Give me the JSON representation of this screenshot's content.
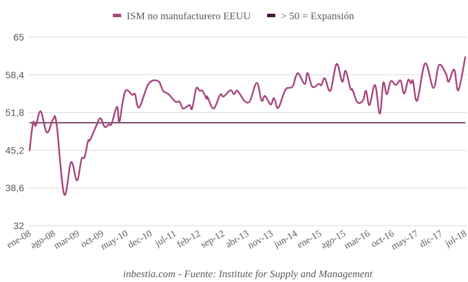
{
  "chart_data": {
    "type": "line",
    "title": "",
    "xlabel": "",
    "ylabel": "",
    "ylim": [
      32,
      65
    ],
    "yticks": [
      "65",
      "58,4",
      "51,8",
      "45,2",
      "38,6",
      "32"
    ],
    "ytick_values": [
      65,
      58.4,
      51.8,
      45.2,
      38.6,
      32
    ],
    "grid": true,
    "legend_position": "top-center",
    "x_range_months": [
      0,
      126
    ],
    "x_tick_labels": [
      "ene-08",
      "ago-08",
      "mar-09",
      "oct-09",
      "may-10",
      "dec-10",
      "jul-11",
      "feb-12",
      "sep-12",
      "abr-13",
      "nov-13",
      "jun-14",
      "ene-15",
      "ago-15",
      "mar-16",
      "oct-16",
      "may-17",
      "dic-17",
      "jul-18"
    ],
    "x_tick_step_months": 7,
    "series": [
      {
        "name": "ISM no manufacturero EEUU",
        "color": "#A7457E",
        "smooth": true,
        "points_month_value": [
          [
            0,
            45.2
          ],
          [
            1,
            50.0
          ],
          [
            1.8,
            49.5
          ],
          [
            3.2,
            52.0
          ],
          [
            5,
            48.3
          ],
          [
            6.8,
            50.6
          ],
          [
            7.8,
            49.8
          ],
          [
            10,
            37.5
          ],
          [
            12,
            43.1
          ],
          [
            13.7,
            39.9
          ],
          [
            15,
            43.6
          ],
          [
            15.9,
            44.0
          ],
          [
            16.9,
            46.8
          ],
          [
            17.5,
            47.0
          ],
          [
            19.3,
            49.5
          ],
          [
            20.5,
            50.8
          ],
          [
            21.7,
            49.3
          ],
          [
            22.9,
            49.7
          ],
          [
            23.7,
            49.8
          ],
          [
            25.3,
            52.8
          ],
          [
            25.9,
            50.0
          ],
          [
            26.9,
            53.5
          ],
          [
            27.9,
            55.7
          ],
          [
            29.7,
            54.9
          ],
          [
            30.5,
            55.0
          ],
          [
            31.7,
            52.7
          ],
          [
            34.4,
            56.8
          ],
          [
            37.2,
            57.3
          ],
          [
            38.6,
            55.6
          ],
          [
            40.2,
            55.0
          ],
          [
            42.2,
            53.7
          ],
          [
            43.4,
            53.7
          ],
          [
            44.4,
            52.5
          ],
          [
            46.2,
            53.1
          ],
          [
            47,
            52.5
          ],
          [
            48.2,
            56.0
          ],
          [
            49.2,
            55.6
          ],
          [
            50,
            55.6
          ],
          [
            51.4,
            54.6
          ],
          [
            51.2,
            54.2
          ],
          [
            53.2,
            52.5
          ],
          [
            55.1,
            54.9
          ],
          [
            56.1,
            54.6
          ],
          [
            58.1,
            55.7
          ],
          [
            59.1,
            55.0
          ],
          [
            60.1,
            55.6
          ],
          [
            62.1,
            53.9
          ],
          [
            63.7,
            53.8
          ],
          [
            65.7,
            57.0
          ],
          [
            67.1,
            53.9
          ],
          [
            68.1,
            54.7
          ],
          [
            69.7,
            53.2
          ],
          [
            70.7,
            54.3
          ],
          [
            71.9,
            52.6
          ],
          [
            74,
            55.8
          ],
          [
            76,
            56.3
          ],
          [
            77,
            58.1
          ],
          [
            77.8,
            58.6
          ],
          [
            79.6,
            56.8
          ],
          [
            80.4,
            58.7
          ],
          [
            81.8,
            56.3
          ],
          [
            83.6,
            56.8
          ],
          [
            84.4,
            56.6
          ],
          [
            85.4,
            57.8
          ],
          [
            87,
            55.6
          ],
          [
            88.8,
            60.3
          ],
          [
            90.4,
            57.2
          ],
          [
            91.4,
            59.1
          ],
          [
            92.8,
            56.0
          ],
          [
            93.4,
            55.8
          ],
          [
            94.8,
            53.6
          ],
          [
            96.4,
            53.9
          ],
          [
            97.3,
            55.6
          ],
          [
            98.3,
            53.1
          ],
          [
            99.9,
            56.6
          ],
          [
            101.3,
            51.6
          ],
          [
            102.3,
            57.0
          ],
          [
            103.3,
            55.0
          ],
          [
            104.5,
            57.3
          ],
          [
            105.9,
            56.6
          ],
          [
            107.3,
            57.4
          ],
          [
            108.3,
            55.1
          ],
          [
            109.5,
            57.5
          ],
          [
            110.3,
            56.9
          ],
          [
            110.9,
            57.3
          ],
          [
            112.1,
            53.9
          ],
          [
            114.4,
            60.4
          ],
          [
            116.8,
            56.1
          ],
          [
            118.4,
            60.1
          ],
          [
            120.4,
            58.6
          ],
          [
            121.2,
            57.2
          ],
          [
            122.8,
            59.3
          ],
          [
            124,
            55.7
          ],
          [
            126,
            61.5
          ]
        ]
      },
      {
        "name": "> 50 = Expansión",
        "color": "#4A1540",
        "constant_value": 50
      }
    ]
  },
  "legend": {
    "items": [
      {
        "label": "ISM no manufacturero EEUU",
        "color": "#A7457E"
      },
      {
        "label": "> 50 = Expansión",
        "color": "#4A1540"
      }
    ]
  },
  "footer": {
    "text": "inbestia.com - Fuente: Institute for Supply and Management"
  }
}
